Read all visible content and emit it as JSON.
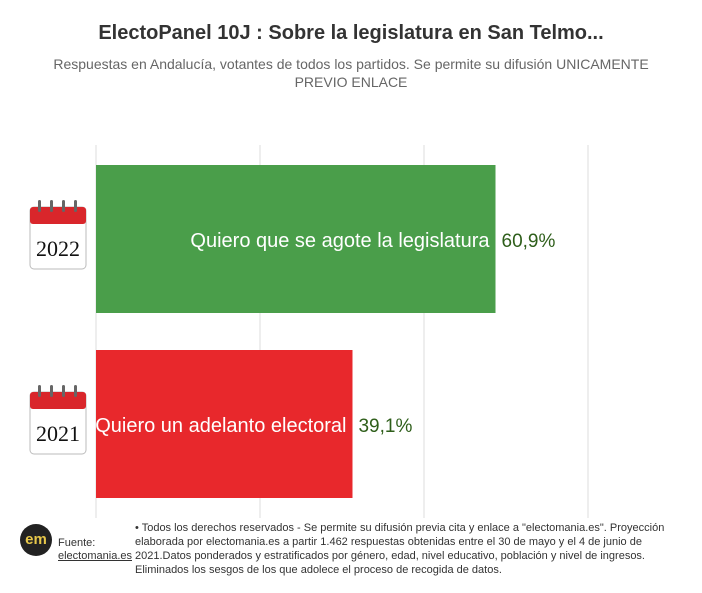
{
  "chart_data": {
    "type": "bar",
    "orientation": "horizontal",
    "title": "ElectoPanel 10J : Sobre la legislatura en San Telmo...",
    "subtitle": "Respuestas en Andalucía, votantes de todos los partidos. Se permite su difusión UNICAMENTE PREVIO ENLACE",
    "categories": [
      "Quiero que se agote la legislatura",
      "Quiero un adelanto electoral"
    ],
    "values": [
      60.9,
      39.1
    ],
    "value_labels": [
      "60,9%",
      "39,1%"
    ],
    "category_icons": [
      "2022",
      "2021"
    ],
    "colors": [
      "#4a9e4a",
      "#e8282c"
    ],
    "xlim": [
      0,
      100
    ],
    "grid": true,
    "legend": "none"
  },
  "footer": {
    "logo_text": "em",
    "source_label": "Fuente:",
    "source_link": "electomania.es",
    "notes": "• Todos los derechos reservados - Se permite su difusión previa cita y enlace a \"electomania.es\". Proyección elaborada por electomania.es a partir 1.462 respuestas obtenidas entre el 30 de mayo y el 4 de junio de 2021.Datos ponderados y estratificados por género, edad, nivel educativo, población y nivel de ingresos. Eliminados los sesgos de los que adolece el proceso de recogida de datos."
  }
}
